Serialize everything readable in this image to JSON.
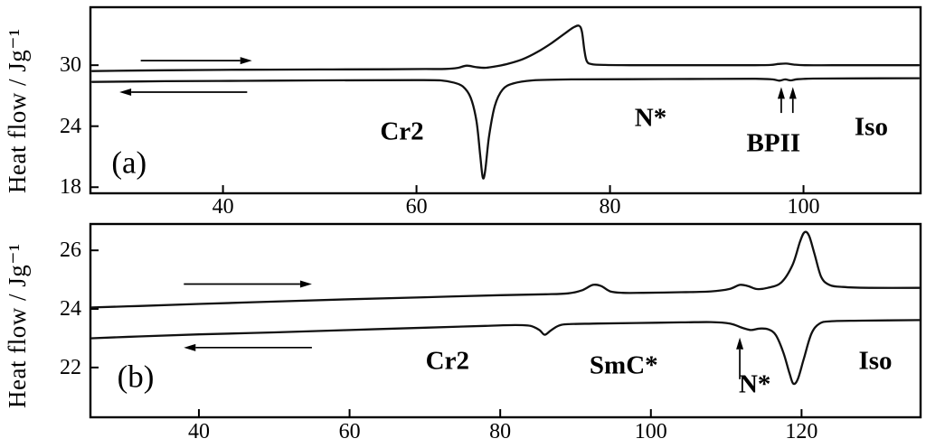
{
  "figure": {
    "background": "#ffffff",
    "ink": "#000000",
    "curve_color": "#111111"
  },
  "chart_data": [
    {
      "id": "a",
      "type": "line",
      "panel_label": "(a)",
      "panel_label_pos": {
        "x": 30.3,
        "y": 20.4
      },
      "xlabel": "",
      "ylabel": "Heat flow / Jg⁻¹",
      "xlim": [
        26.3,
        112.1
      ],
      "ylim": [
        17.4,
        35.7
      ],
      "xticks": [
        40,
        60,
        80,
        100
      ],
      "yticks": [
        18,
        24,
        30
      ],
      "grid": false,
      "legend": "none",
      "series": [
        {
          "name": "heating",
          "x": [
            26.5,
            34,
            42,
            50,
            57,
            61,
            63,
            64.2,
            65.2,
            66.2,
            67.2,
            68.3,
            69.5,
            71,
            72.5,
            74,
            75.3,
            76.2,
            76.8,
            77.1,
            77.35,
            77.6,
            78.1,
            79.5,
            82,
            86,
            91,
            95,
            96.6,
            97.4,
            98.2,
            99,
            100.2,
            103,
            107,
            111.9
          ],
          "y": [
            29.42,
            29.5,
            29.55,
            29.58,
            29.6,
            29.62,
            29.63,
            29.72,
            29.95,
            29.8,
            29.75,
            29.9,
            30.15,
            30.6,
            31.3,
            32.2,
            33.1,
            33.7,
            33.88,
            33.3,
            31.5,
            30.4,
            30.1,
            30.02,
            30.0,
            30.0,
            30.0,
            30.0,
            30.02,
            30.12,
            30.16,
            30.06,
            30.0,
            30.0,
            30.0,
            30.0
          ]
        },
        {
          "name": "cooling",
          "x": [
            26.5,
            34,
            42,
            50,
            56,
            60,
            62.5,
            63.8,
            64.8,
            65.6,
            66.2,
            66.6,
            66.85,
            67.1,
            67.5,
            68.1,
            68.9,
            70,
            72,
            76,
            82,
            90,
            95,
            96.8,
            97.5,
            98.1,
            98.7,
            99.4,
            101,
            105,
            111.9
          ],
          "y": [
            28.35,
            28.42,
            28.46,
            28.5,
            28.52,
            28.53,
            28.5,
            28.3,
            27.9,
            26.8,
            24.5,
            21.0,
            18.95,
            19.6,
            23.0,
            26.0,
            27.6,
            28.2,
            28.5,
            28.6,
            28.62,
            28.65,
            28.66,
            28.6,
            28.48,
            28.6,
            28.5,
            28.62,
            28.68,
            28.7,
            28.72
          ]
        }
      ],
      "annotations": [
        {
          "text": "Cr2",
          "x": 58.5,
          "y": 23.4
        },
        {
          "text": "N*",
          "x": 84.2,
          "y": 24.8
        },
        {
          "text": "BPII",
          "x": 96.9,
          "y": 22.3
        },
        {
          "text": "Iso",
          "x": 107,
          "y": 23.9
        }
      ],
      "direction_arrows": [
        {
          "name": "heating-direction-arrow",
          "x_from": 31.5,
          "x_to": 43,
          "y": 30.45
        },
        {
          "name": "cooling-direction-arrow",
          "x_from": 42.5,
          "x_to": 29.3,
          "y": 27.35
        }
      ],
      "marker_arrows": [
        {
          "x": 97.7,
          "y_from": 25.3,
          "y_to": 27.85
        },
        {
          "x": 98.9,
          "y_from": 25.3,
          "y_to": 27.85
        }
      ]
    },
    {
      "id": "b",
      "type": "line",
      "panel_label": "(b)",
      "panel_label_pos": {
        "x": 31.6,
        "y": 21.7
      },
      "xlabel": "",
      "ylabel": "Heat flow / Jg⁻¹",
      "xlim": [
        25.6,
        135.8
      ],
      "ylim": [
        20.3,
        26.9
      ],
      "xticks": [
        40,
        60,
        80,
        100,
        120
      ],
      "yticks": [
        22,
        24,
        26
      ],
      "grid": false,
      "legend": "none",
      "series": [
        {
          "name": "heating",
          "x": [
            25.8,
            32,
            40,
            50,
            60,
            70,
            80,
            86,
            89,
            90.8,
            92.3,
            93.4,
            94.6,
            96.2,
            99,
            104,
            108,
            110.4,
            111.8,
            112.9,
            114.1,
            115.5,
            117.3,
            118.8,
            119.8,
            120.4,
            121.0,
            121.7,
            122.6,
            123.7,
            125.5,
            129,
            135.6
          ],
          "y": [
            24.05,
            24.1,
            24.17,
            24.25,
            24.33,
            24.4,
            24.47,
            24.5,
            24.53,
            24.63,
            24.82,
            24.78,
            24.6,
            24.55,
            24.55,
            24.57,
            24.6,
            24.68,
            24.82,
            24.78,
            24.68,
            24.72,
            24.9,
            25.5,
            26.3,
            26.62,
            26.5,
            25.9,
            25.1,
            24.82,
            24.75,
            24.72,
            24.72
          ]
        },
        {
          "name": "cooling",
          "x": [
            25.8,
            32,
            40,
            50,
            60,
            70,
            78,
            82,
            84,
            85.2,
            85.9,
            86.7,
            87.7,
            89,
            93,
            98,
            104,
            108,
            110.5,
            112.2,
            113.3,
            114.4,
            115.6,
            116.6,
            117.6,
            118.4,
            118.9,
            119.5,
            120.3,
            121.3,
            122.4,
            124,
            128,
            135.6
          ],
          "y": [
            23.0,
            23.06,
            23.13,
            23.2,
            23.28,
            23.36,
            23.42,
            23.45,
            23.42,
            23.28,
            23.12,
            23.26,
            23.42,
            23.48,
            23.5,
            23.52,
            23.54,
            23.55,
            23.5,
            23.35,
            23.28,
            23.33,
            23.3,
            23.1,
            22.5,
            21.8,
            21.45,
            21.6,
            22.3,
            23.15,
            23.5,
            23.58,
            23.6,
            23.62
          ]
        }
      ],
      "annotations": [
        {
          "text": "Cr2",
          "x": 73,
          "y": 22.2
        },
        {
          "text": "SmC*",
          "x": 96.4,
          "y": 22.05
        },
        {
          "text": "N*",
          "x": 113.8,
          "y": 21.4
        },
        {
          "text": "Iso",
          "x": 129.8,
          "y": 22.2
        }
      ],
      "direction_arrows": [
        {
          "name": "heating-direction-arrow",
          "x_from": 38,
          "x_to": 55,
          "y": 24.85
        },
        {
          "name": "cooling-direction-arrow",
          "x_from": 55,
          "x_to": 38,
          "y": 22.68
        }
      ],
      "marker_arrows": [
        {
          "x": 111.8,
          "y_from": 21.6,
          "y_to": 23.02
        }
      ]
    }
  ]
}
